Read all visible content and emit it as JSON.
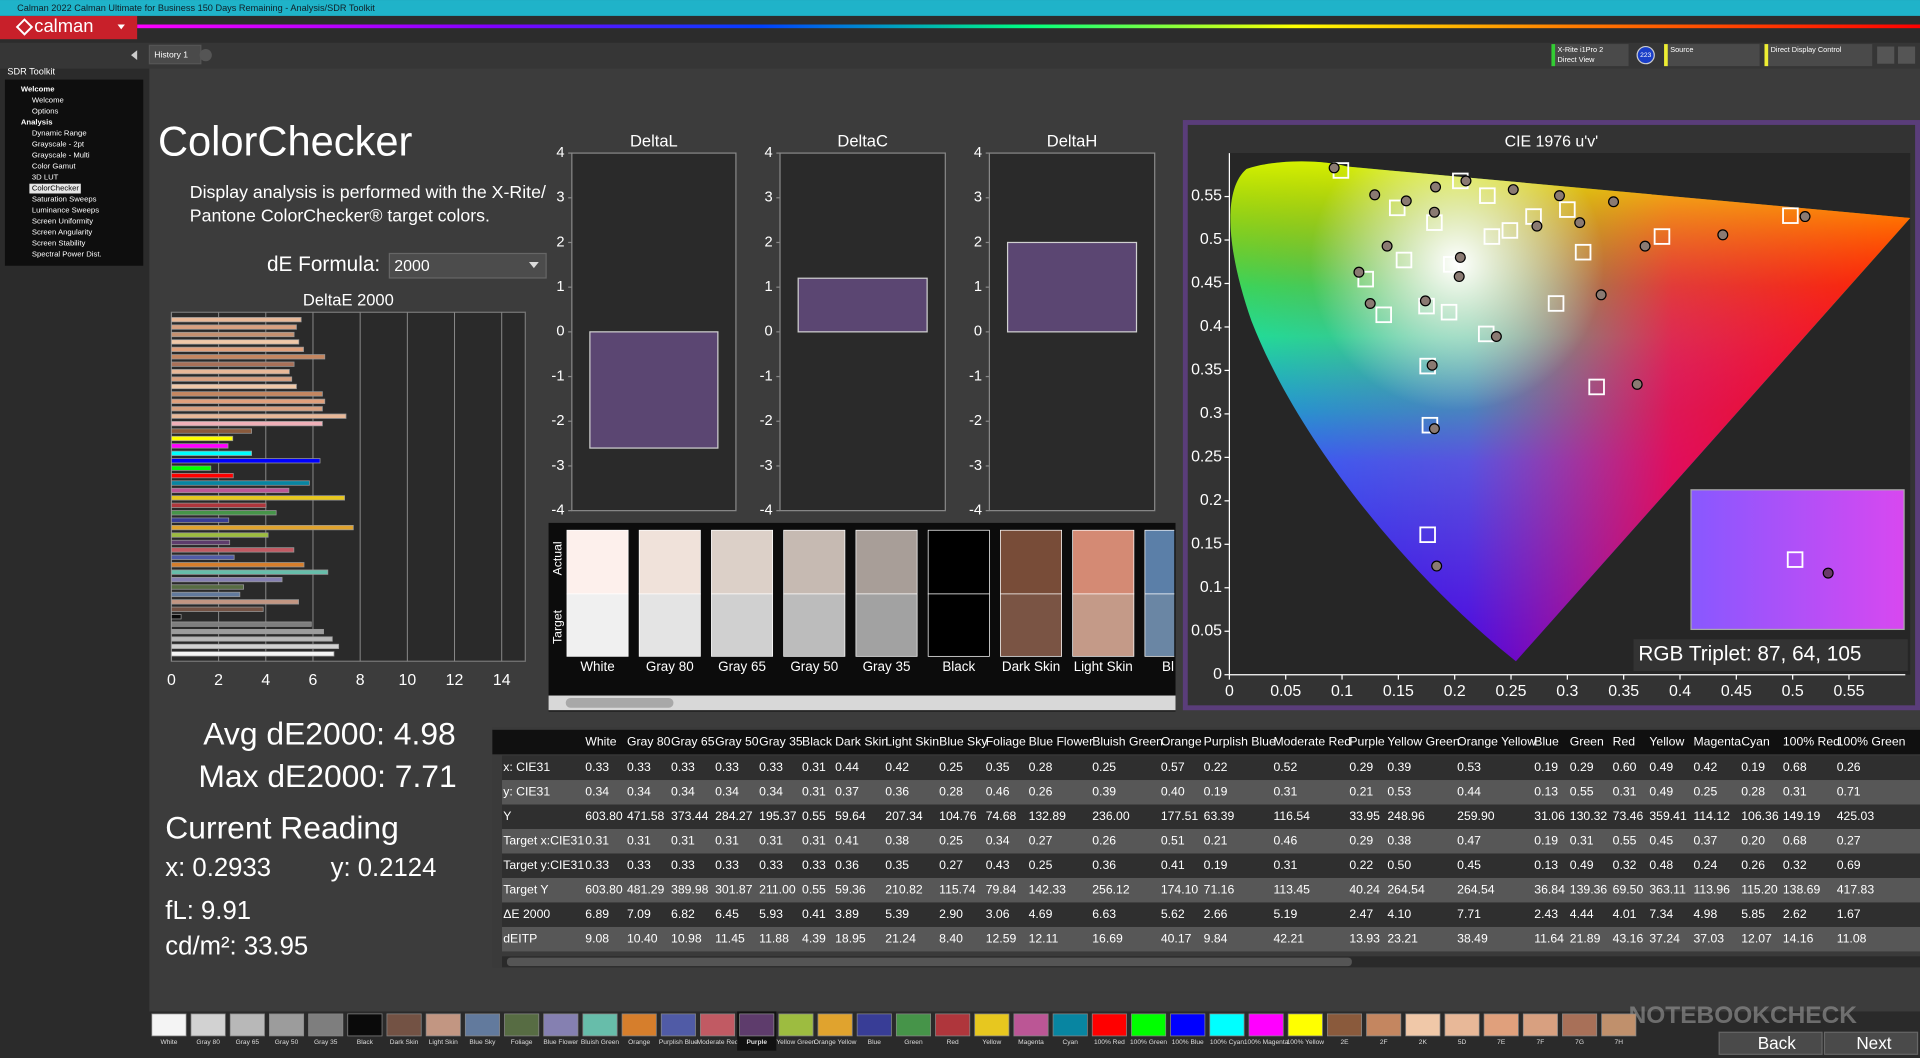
{
  "window": {
    "title": "Calman 2022 Calman Ultimate for Business 150 Days Remaining - Analysis/SDR Toolkit",
    "logo": "calman",
    "tab": "History 1",
    "meter": "X-Rite i1Pro 2",
    "meter_mode": "Direct View",
    "meter_badge": "223",
    "source": "Source",
    "control": "Direct Display Control"
  },
  "sidebar": {
    "title": "SDR Toolkit",
    "selected": 10,
    "items": [
      {
        "label": "Welcome",
        "level": 0
      },
      {
        "label": "Welcome",
        "level": 1
      },
      {
        "label": "Options",
        "level": 1
      },
      {
        "label": "Analysis",
        "level": 0
      },
      {
        "label": "Dynamic Range",
        "level": 1
      },
      {
        "label": "Grayscale - 2pt",
        "level": 1
      },
      {
        "label": "Grayscale - Multi",
        "level": 1
      },
      {
        "label": "Color Gamut",
        "level": 1
      },
      {
        "label": "3D LUT",
        "level": 1
      },
      {
        "label": "ColorChecker",
        "level": 1
      },
      {
        "label": "Saturation Sweeps",
        "level": 1
      },
      {
        "label": "Luminance Sweeps",
        "level": 1
      },
      {
        "label": "Screen Uniformity",
        "level": 1
      },
      {
        "label": "Screen Angularity",
        "level": 1
      },
      {
        "label": "Screen Stability",
        "level": 1
      },
      {
        "label": "Spectral Power Dist.",
        "level": 1
      }
    ]
  },
  "panel": {
    "title": "ColorChecker",
    "description": [
      "Display analysis is performed with the X-Rite/",
      "Pantone ColorChecker® target colors."
    ],
    "formula_label": "dE Formula:",
    "formula": "2000"
  },
  "stats": {
    "avg": "Avg dE2000: 4.98",
    "max": "Max dE2000: 7.71",
    "current": "Current Reading",
    "x": "x: 0.2933",
    "y": "y: 0.2124",
    "fl": "fL: 9.91",
    "cdm2": "cd/m²: 33.95"
  },
  "chart_data": [
    {
      "type": "bar",
      "orientation": "horizontal",
      "title": "DeltaE 2000",
      "grid": true,
      "xlim": [
        0,
        15
      ],
      "xticks": [
        0,
        2,
        4,
        6,
        8,
        10,
        12,
        14
      ],
      "values": [
        5.5,
        5.3,
        5.2,
        5.4,
        5.6,
        6.5,
        5.2,
        5.0,
        5.1,
        5.3,
        6.4,
        6.5,
        6.4,
        7.4,
        6.4,
        3.4,
        2.6,
        2.4,
        3.4,
        6.3,
        1.67,
        2.62,
        5.85,
        4.98,
        7.34,
        4.01,
        4.44,
        2.43,
        7.71,
        4.1,
        2.47,
        5.19,
        2.66,
        5.62,
        6.63,
        4.69,
        3.06,
        2.9,
        5.39,
        3.89,
        0.41,
        5.93,
        6.45,
        6.82,
        7.09,
        6.89
      ],
      "colors": [
        "#e8b898",
        "#d8a080",
        "#c49070",
        "#f0c8a8",
        "#e0a07c",
        "#c48660",
        "#a87058",
        "#e8b898",
        "#d8a080",
        "#f0c8a8",
        "#c48660",
        "#e0a07c",
        "#d8a080",
        "#e8b898",
        "#f0b0b8",
        "#8a5a3c",
        "#ffff00",
        "#ff00ff",
        "#00ffff",
        "#0000ff",
        "#00ff00",
        "#ff0000",
        "#0885a1",
        "#bb5695",
        "#e7c71f",
        "#af363c",
        "#469449",
        "#383d96",
        "#e0a32e",
        "#9dbc40",
        "#5e3c6c",
        "#c15a63",
        "#505ba6",
        "#d67e2c",
        "#67bdaa",
        "#8580b1",
        "#576c43",
        "#627a9d",
        "#c29682",
        "#735244",
        "#0a0a0a",
        "#7e7e7e",
        "#9c9c9c",
        "#b8b8b8",
        "#d2d2d2",
        "#f4f4f4"
      ]
    },
    {
      "type": "bar",
      "title": "DeltaL",
      "values": [
        -2.6
      ],
      "color": "#5b4672",
      "ylim": [
        -4,
        4
      ],
      "yticks": [
        -4,
        -3,
        -2,
        -1,
        0,
        1,
        2,
        3,
        4
      ]
    },
    {
      "type": "bar",
      "title": "DeltaC",
      "values": [
        1.2
      ],
      "color": "#5b4672",
      "ylim": [
        -4,
        4
      ],
      "yticks": [
        -4,
        -3,
        -2,
        -1,
        0,
        1,
        2,
        3,
        4
      ]
    },
    {
      "type": "bar",
      "title": "DeltaH",
      "values": [
        2.0
      ],
      "color": "#5b4672",
      "ylim": [
        -4,
        4
      ],
      "yticks": [
        -4,
        -3,
        -2,
        -1,
        0,
        1,
        2,
        3,
        4
      ]
    },
    {
      "type": "scatter",
      "title": "CIE 1976 u'v'",
      "xlim": [
        0,
        0.6
      ],
      "ylim": [
        0,
        0.6
      ],
      "xticks": [
        0,
        0.05,
        0.1,
        0.15,
        0.2,
        0.25,
        0.3,
        0.35,
        0.4,
        0.45,
        0.5,
        0.55
      ],
      "yticks": [
        0,
        0.05,
        0.1,
        0.15,
        0.2,
        0.25,
        0.3,
        0.35,
        0.4,
        0.45,
        0.5,
        0.55
      ],
      "series": [
        {
          "marker": "square",
          "color": "#ffffff",
          "x": [
            0.099,
            0.205,
            0.229,
            0.149,
            0.182,
            0.27,
            0.3,
            0.233,
            0.249,
            0.155,
            0.197,
            0.121,
            0.314,
            0.384,
            0.498,
            0.175,
            0.195,
            0.137,
            0.29,
            0.228,
            0.176,
            0.326,
            0.178,
            0.176
          ],
          "values": [
            0.58,
            0.568,
            0.551,
            0.537,
            0.52,
            0.527,
            0.535,
            0.504,
            0.511,
            0.477,
            0.472,
            0.455,
            0.486,
            0.504,
            0.528,
            0.424,
            0.417,
            0.414,
            0.427,
            0.392,
            0.355,
            0.331,
            0.287,
            0.161
          ]
        },
        {
          "marker": "circle",
          "color": "#8a7a72",
          "x": [
            0.093,
            0.129,
            0.183,
            0.21,
            0.157,
            0.182,
            0.252,
            0.293,
            0.341,
            0.14,
            0.205,
            0.204,
            0.115,
            0.125,
            0.174,
            0.33,
            0.369,
            0.438,
            0.511,
            0.237,
            0.18,
            0.362,
            0.182,
            0.184,
            0.311,
            0.273
          ],
          "values": [
            0.583,
            0.552,
            0.561,
            0.568,
            0.545,
            0.532,
            0.558,
            0.551,
            0.544,
            0.493,
            0.48,
            0.458,
            0.463,
            0.427,
            0.43,
            0.437,
            0.493,
            0.506,
            0.527,
            0.389,
            0.356,
            0.334,
            0.283,
            0.125,
            0.52,
            0.516
          ]
        }
      ]
    }
  ],
  "rgb_triplet": "RGB Triplet: 87, 64, 105",
  "swatches": {
    "actual_label": "Actual",
    "target_label": "Target",
    "patches": [
      {
        "name": "White",
        "actual": "#fdf0ec",
        "target": "#f0f0f0"
      },
      {
        "name": "Gray 80",
        "actual": "#f0e2da",
        "target": "#e4e4e4"
      },
      {
        "name": "Gray 65",
        "actual": "#dcd0c8",
        "target": "#d0d0d0"
      },
      {
        "name": "Gray 50",
        "actual": "#c6bab2",
        "target": "#bcbcbc"
      },
      {
        "name": "Gray 35",
        "actual": "#a89e98",
        "target": "#a2a2a2"
      },
      {
        "name": "Black",
        "actual": "#000000",
        "target": "#000000"
      },
      {
        "name": "Dark Skin",
        "actual": "#784c38",
        "target": "#7a5444"
      },
      {
        "name": "Light Skin",
        "actual": "#d48a74",
        "target": "#c49a88"
      },
      {
        "name": "Blue",
        "actual": "#5b7fa8",
        "target": "#6a86a4"
      }
    ]
  },
  "table": {
    "header": [
      "White",
      "Gray 80",
      "Gray 65",
      "Gray 50",
      "Gray 35",
      "Black",
      "Dark Skin",
      "Light Skin",
      "Blue Sky",
      "Foliage",
      "Blue Flower",
      "Bluish Green",
      "Orange",
      "Purplish Blue",
      "Moderate Red",
      "Purple",
      "Yellow Green",
      "Orange Yellow",
      "Blue",
      "Green",
      "Red",
      "Yellow",
      "Magenta",
      "Cyan",
      "100% Red",
      "100% Green"
    ],
    "rows": [
      {
        "label": "x: CIE31",
        "cells": [
          "0.33",
          "0.33",
          "0.33",
          "0.33",
          "0.33",
          "0.31",
          "0.44",
          "0.42",
          "0.25",
          "0.35",
          "0.28",
          "0.25",
          "0.57",
          "0.22",
          "0.52",
          "0.29",
          "0.39",
          "0.53",
          "0.19",
          "0.29",
          "0.60",
          "0.49",
          "0.42",
          "0.19",
          "0.68",
          "0.26"
        ]
      },
      {
        "label": "y: CIE31",
        "cells": [
          "0.34",
          "0.34",
          "0.34",
          "0.34",
          "0.34",
          "0.31",
          "0.37",
          "0.36",
          "0.28",
          "0.46",
          "0.26",
          "0.39",
          "0.40",
          "0.19",
          "0.31",
          "0.21",
          "0.53",
          "0.44",
          "0.13",
          "0.55",
          "0.31",
          "0.49",
          "0.25",
          "0.28",
          "0.31",
          "0.71"
        ]
      },
      {
        "label": "Y",
        "cells": [
          "603.80",
          "471.58",
          "373.44",
          "284.27",
          "195.37",
          "0.55",
          "59.64",
          "207.34",
          "104.76",
          "74.68",
          "132.89",
          "236.00",
          "177.51",
          "63.39",
          "116.54",
          "33.95",
          "248.96",
          "259.90",
          "31.06",
          "130.32",
          "73.46",
          "359.41",
          "114.12",
          "106.36",
          "149.19",
          "425.03"
        ]
      },
      {
        "label": "Target x:CIE31",
        "cells": [
          "0.31",
          "0.31",
          "0.31",
          "0.31",
          "0.31",
          "0.31",
          "0.41",
          "0.38",
          "0.25",
          "0.34",
          "0.27",
          "0.26",
          "0.51",
          "0.21",
          "0.46",
          "0.29",
          "0.38",
          "0.47",
          "0.19",
          "0.31",
          "0.55",
          "0.45",
          "0.37",
          "0.20",
          "0.68",
          "0.27"
        ]
      },
      {
        "label": "Target y:CIE31",
        "cells": [
          "0.33",
          "0.33",
          "0.33",
          "0.33",
          "0.33",
          "0.33",
          "0.36",
          "0.35",
          "0.27",
          "0.43",
          "0.25",
          "0.36",
          "0.41",
          "0.19",
          "0.31",
          "0.22",
          "0.50",
          "0.45",
          "0.13",
          "0.49",
          "0.32",
          "0.48",
          "0.24",
          "0.26",
          "0.32",
          "0.69"
        ]
      },
      {
        "label": "Target Y",
        "cells": [
          "603.80",
          "481.29",
          "389.98",
          "301.87",
          "211.00",
          "0.55",
          "59.36",
          "210.82",
          "115.74",
          "79.84",
          "142.33",
          "256.12",
          "174.10",
          "71.16",
          "113.45",
          "40.24",
          "264.54",
          "264.54",
          "36.84",
          "139.36",
          "69.50",
          "363.11",
          "113.96",
          "115.20",
          "138.69",
          "417.83"
        ]
      },
      {
        "label": "ΔE 2000",
        "cells": [
          "6.89",
          "7.09",
          "6.82",
          "6.45",
          "5.93",
          "0.41",
          "3.89",
          "5.39",
          "2.90",
          "3.06",
          "4.69",
          "6.63",
          "5.62",
          "2.66",
          "5.19",
          "2.47",
          "4.10",
          "7.71",
          "2.43",
          "4.44",
          "4.01",
          "7.34",
          "4.98",
          "5.85",
          "2.62",
          "1.67"
        ]
      },
      {
        "label": "dEITP",
        "cells": [
          "9.08",
          "10.40",
          "10.98",
          "11.45",
          "11.88",
          "4.39",
          "18.95",
          "21.24",
          "8.40",
          "12.59",
          "12.11",
          "16.69",
          "40.17",
          "9.84",
          "42.21",
          "13.93",
          "23.21",
          "38.49",
          "11.64",
          "21.89",
          "43.16",
          "37.24",
          "37.03",
          "12.07",
          "14.16",
          "11.08"
        ]
      }
    ]
  },
  "nav": {
    "selected": 15,
    "back": "Back",
    "next": "Next",
    "patches": [
      {
        "name": "White",
        "color": "#f4f4f4"
      },
      {
        "name": "Gray 80",
        "color": "#d2d2d2"
      },
      {
        "name": "Gray 65",
        "color": "#b8b8b8"
      },
      {
        "name": "Gray 50",
        "color": "#9c9c9c"
      },
      {
        "name": "Gray 35",
        "color": "#7e7e7e"
      },
      {
        "name": "Black",
        "color": "#0a0a0a"
      },
      {
        "name": "Dark Skin",
        "color": "#735244"
      },
      {
        "name": "Light Skin",
        "color": "#c29682"
      },
      {
        "name": "Blue Sky",
        "color": "#627a9d"
      },
      {
        "name": "Foliage",
        "color": "#576c43"
      },
      {
        "name": "Blue Flower",
        "color": "#8580b1"
      },
      {
        "name": "Bluish Green",
        "color": "#67bdaa"
      },
      {
        "name": "Orange",
        "color": "#d67e2c"
      },
      {
        "name": "Purplish Blue",
        "color": "#505ba6"
      },
      {
        "name": "Moderate Red",
        "color": "#c15a63"
      },
      {
        "name": "Purple",
        "color": "#5e3c6c"
      },
      {
        "name": "Yellow Green",
        "color": "#9dbc40"
      },
      {
        "name": "Orange Yellow",
        "color": "#e0a32e"
      },
      {
        "name": "Blue",
        "color": "#383d96"
      },
      {
        "name": "Green",
        "color": "#469449"
      },
      {
        "name": "Red",
        "color": "#af363c"
      },
      {
        "name": "Yellow",
        "color": "#e7c71f"
      },
      {
        "name": "Magenta",
        "color": "#bb5695"
      },
      {
        "name": "Cyan",
        "color": "#0885a1"
      },
      {
        "name": "100% Red",
        "color": "#ff0000"
      },
      {
        "name": "100% Green",
        "color": "#00ff00"
      },
      {
        "name": "100% Blue",
        "color": "#0000ff"
      },
      {
        "name": "100% Cyan",
        "color": "#00ffff"
      },
      {
        "name": "100% Magenta",
        "color": "#ff00ff"
      },
      {
        "name": "100% Yellow",
        "color": "#ffff00"
      },
      {
        "name": "2E",
        "color": "#8a5a3c"
      },
      {
        "name": "2F",
        "color": "#c48660"
      },
      {
        "name": "2K",
        "color": "#f0c8a8"
      },
      {
        "name": "5D",
        "color": "#e8b898"
      },
      {
        "name": "7E",
        "color": "#e0a07c"
      },
      {
        "name": "7F",
        "color": "#d8a080"
      },
      {
        "name": "7G",
        "color": "#a87058"
      },
      {
        "name": "7H",
        "color": "#c0906c"
      }
    ]
  },
  "watermark": "NOTEBOOKCHECK"
}
